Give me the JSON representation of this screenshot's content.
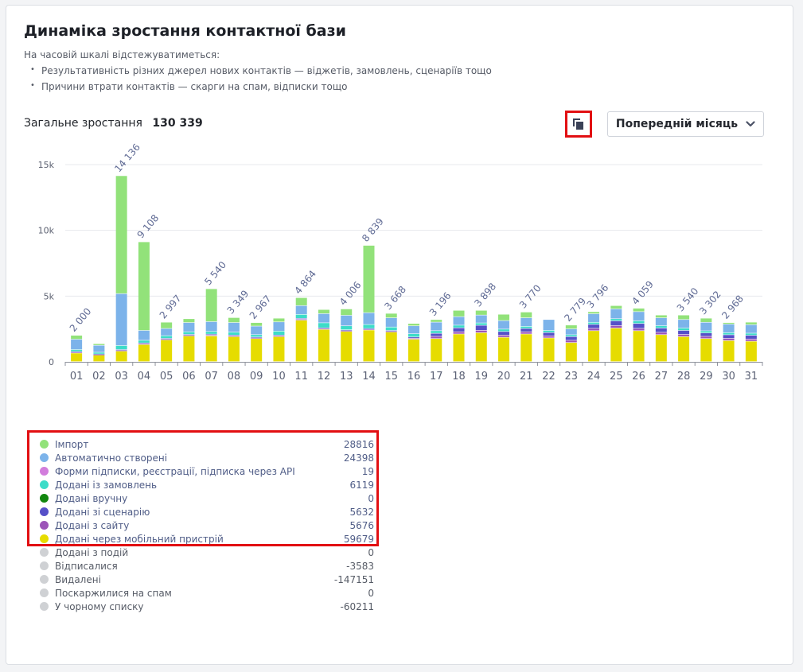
{
  "header": {
    "title": "Динаміка зростання контактної бази",
    "intro": "На часовій шкалі відстежуватиметься:",
    "bullets": [
      "Результативність різних джерел нових контактів — віджетів, замовлень, сценаріїв тощо",
      "Причини втрати контактів — скарги на спам, відписки тощо"
    ]
  },
  "summary": {
    "label": "Загальне зростання",
    "value": "130 339"
  },
  "controls": {
    "copy_icon": "copy-icon",
    "period_label": "Попередній місяць",
    "period_icon": "chevron-down-icon"
  },
  "chart_data": {
    "type": "bar",
    "stacked": true,
    "categories": [
      "01",
      "02",
      "03",
      "04",
      "05",
      "06",
      "07",
      "08",
      "09",
      "10",
      "11",
      "12",
      "13",
      "14",
      "15",
      "16",
      "17",
      "18",
      "19",
      "20",
      "21",
      "22",
      "23",
      "24",
      "25",
      "26",
      "27",
      "28",
      "29",
      "30",
      "31"
    ],
    "yticks": [
      "0",
      "5k",
      "10k",
      "15k"
    ],
    "ylim": [
      0,
      15000
    ],
    "grid": true,
    "totals": [
      "2 000",
      "",
      "14 136",
      "9 108",
      "2 997",
      "",
      "5 540",
      "3 349",
      "2 967",
      "",
      "4 864",
      "",
      "4 006",
      "8 839",
      "3 668",
      "",
      "3 196",
      "",
      "3 898",
      "",
      "3 770",
      "",
      "2 779",
      "3 796",
      "",
      "4 059",
      "",
      "3 540",
      "3 302",
      "2 968",
      ""
    ],
    "series": [
      {
        "name": "Додані через мобільний пристрій",
        "color": "#e6dc00",
        "values": [
          650,
          500,
          800,
          1300,
          1650,
          1950,
          1950,
          1900,
          1750,
          1900,
          3150,
          2450,
          2300,
          2400,
          2250,
          1700,
          1750,
          2100,
          2200,
          1850,
          2100,
          1800,
          1450,
          2350,
          2550,
          2350,
          2050,
          1900,
          1750,
          1600,
          1550
        ]
      },
      {
        "name": "Додані з сайту",
        "color": "#9c55b8",
        "values": [
          60,
          40,
          60,
          60,
          60,
          60,
          70,
          60,
          60,
          60,
          70,
          60,
          60,
          60,
          60,
          80,
          170,
          170,
          180,
          160,
          170,
          160,
          170,
          180,
          190,
          180,
          180,
          170,
          170,
          170,
          170
        ]
      },
      {
        "name": "Додані зі сценарію",
        "color": "#5650c8",
        "values": [
          60,
          40,
          60,
          60,
          60,
          60,
          70,
          60,
          60,
          60,
          70,
          60,
          60,
          60,
          60,
          90,
          230,
          300,
          380,
          280,
          250,
          250,
          280,
          300,
          360,
          370,
          320,
          300,
          260,
          270,
          280
        ]
      },
      {
        "name": "Додані вручну",
        "color": "#12870f",
        "values": [
          0,
          0,
          0,
          0,
          0,
          0,
          0,
          0,
          0,
          0,
          0,
          0,
          0,
          0,
          0,
          0,
          0,
          0,
          0,
          0,
          0,
          0,
          0,
          0,
          0,
          0,
          0,
          0,
          0,
          0,
          0
        ]
      },
      {
        "name": "Додані із замовлень",
        "color": "#3ddcc8",
        "values": [
          150,
          130,
          300,
          200,
          200,
          200,
          200,
          220,
          180,
          300,
          300,
          380,
          300,
          300,
          260,
          250,
          200,
          200,
          180,
          180,
          160,
          160,
          140,
          160,
          160,
          200,
          180,
          180,
          160,
          160,
          160
        ]
      },
      {
        "name": "Форми підписки, реєстрації, підписка через API",
        "color": "#d27ddc",
        "values": [
          0,
          0,
          0,
          0,
          0,
          0,
          0,
          0,
          0,
          0,
          0,
          0,
          0,
          0,
          0,
          0,
          0,
          0,
          0,
          0,
          0,
          0,
          0,
          0,
          0,
          0,
          0,
          0,
          0,
          0,
          0
        ]
      },
      {
        "name": "Автоматично створені",
        "color": "#7cb3ea",
        "values": [
          780,
          530,
          3950,
          750,
          550,
          700,
          750,
          730,
          650,
          700,
          670,
          700,
          800,
          900,
          700,
          600,
          650,
          650,
          600,
          650,
          650,
          830,
          450,
          650,
          750,
          700,
          600,
          650,
          650,
          650,
          650
        ]
      },
      {
        "name": "Імпорт",
        "color": "#92e27a",
        "values": [
          300,
          120,
          8966,
          6738,
          477,
          290,
          2500,
          379,
          267,
          280,
          604,
          310,
          486,
          5119,
          338,
          180,
          196,
          478,
          358,
          480,
          440,
          0,
          289,
          156,
          249,
          259,
          210,
          340,
          312,
          118,
          190
        ]
      }
    ]
  },
  "legend": [
    {
      "label": "Імпорт",
      "value": "28816",
      "color": "#92e27a"
    },
    {
      "label": "Автоматично створені",
      "value": "24398",
      "color": "#7cb3ea"
    },
    {
      "label": "Форми підписки, реєстрації, підписка через API",
      "value": "19",
      "color": "#d27ddc"
    },
    {
      "label": "Додані із замовлень",
      "value": "6119",
      "color": "#3ddcc8"
    },
    {
      "label": "Додані вручну",
      "value": "0",
      "color": "#12870f"
    },
    {
      "label": "Додані зі сценарію",
      "value": "5632",
      "color": "#5650c8"
    },
    {
      "label": "Додані з сайту",
      "value": "5676",
      "color": "#9c55b8"
    },
    {
      "label": "Додані через мобільний пристрій",
      "value": "59679",
      "color": "#e6dc00"
    },
    {
      "label": "Додані з подій",
      "value": "0",
      "color": "#cfd1d4"
    },
    {
      "label": "Відписалися",
      "value": "-3583",
      "color": "#cfd1d4"
    },
    {
      "label": "Видалені",
      "value": "-147151",
      "color": "#cfd1d4"
    },
    {
      "label": "Поскаржилися на спам",
      "value": "0",
      "color": "#cfd1d4"
    },
    {
      "label": "У чорному списку",
      "value": "-60211",
      "color": "#cfd1d4"
    }
  ]
}
